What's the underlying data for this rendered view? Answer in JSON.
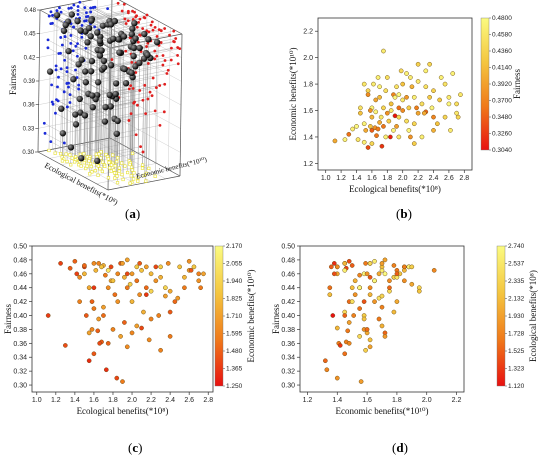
{
  "chart_data": [
    {
      "panel_label": "a",
      "type": "scatter",
      "projection": "3d",
      "zlabel": "Fairness",
      "xlabel": "Ecological benefits(*10⁸)",
      "ylabel": "Economic benefits(*10¹⁰)",
      "z_ticks": [
        "0.48",
        "0.45",
        "0.42",
        "0.39",
        "0.36",
        "0.33",
        "0.30"
      ],
      "colors": {
        "point": "#000000",
        "xz_projection": "#1a2ad8",
        "yz_projection": "#e02020",
        "xy_projection": "#e8e030",
        "drop_line": "#8a8a8a"
      },
      "points": [
        [
          1.5,
          1.36,
          0.47
        ],
        [
          1.55,
          1.32,
          0.335
        ],
        [
          1.58,
          1.48,
          0.42
        ],
        [
          1.6,
          1.45,
          0.345
        ],
        [
          1.65,
          1.59,
          0.475
        ],
        [
          1.6,
          1.35,
          0.44
        ],
        [
          1.64,
          1.47,
          0.378
        ],
        [
          1.68,
          1.46,
          0.362
        ],
        [
          1.66,
          1.41,
          0.36
        ],
        [
          1.7,
          1.51,
          0.4
        ],
        [
          1.84,
          1.4,
          0.31
        ],
        [
          1.9,
          1.56,
          0.305
        ],
        [
          2.3,
          1.59,
          0.35
        ],
        [
          1.73,
          1.33,
          0.322
        ],
        [
          2.4,
          1.45,
          0.405
        ],
        [
          2.1,
          1.4,
          0.382
        ],
        [
          1.3,
          1.42,
          0.357
        ],
        [
          1.45,
          1.58,
          0.42
        ],
        [
          1.55,
          1.72,
          0.375
        ],
        [
          1.75,
          2.05,
          0.465
        ],
        [
          1.92,
          1.78,
          0.455
        ],
        [
          2.0,
          1.6,
          0.375
        ],
        [
          2.2,
          1.82,
          0.46
        ],
        [
          2.7,
          1.58,
          0.46
        ],
        [
          2.5,
          1.85,
          0.47
        ],
        [
          2.6,
          1.7,
          0.465
        ],
        [
          2.35,
          1.95,
          0.44
        ],
        [
          2.75,
          1.72,
          0.46
        ],
        [
          2.05,
          1.88,
          0.47
        ],
        [
          2.25,
          1.65,
          0.45
        ],
        [
          1.78,
          1.75,
          0.45
        ],
        [
          1.82,
          1.52,
          0.43
        ],
        [
          1.95,
          1.55,
          0.44
        ],
        [
          2.0,
          1.68,
          0.46
        ],
        [
          2.15,
          1.5,
          0.44
        ],
        [
          2.1,
          1.85,
          0.465
        ],
        [
          2.4,
          1.75,
          0.435
        ],
        [
          2.55,
          1.55,
          0.44
        ],
        [
          2.45,
          1.5,
          0.42
        ],
        [
          1.6,
          1.62,
          0.475
        ],
        [
          1.4,
          1.48,
          0.478
        ],
        [
          1.85,
          1.6,
          0.46
        ],
        [
          1.95,
          1.72,
          0.48
        ],
        [
          2.2,
          1.95,
          0.435
        ],
        [
          1.7,
          1.78,
          0.472
        ],
        [
          2.3,
          1.78,
          0.455
        ],
        [
          1.55,
          1.75,
          0.44
        ],
        [
          1.88,
          1.45,
          0.475
        ],
        [
          2.05,
          1.52,
          0.45
        ],
        [
          2.15,
          1.7,
          0.47
        ],
        [
          2.6,
          1.65,
          0.478
        ],
        [
          2.65,
          1.88,
          0.47
        ],
        [
          1.75,
          1.62,
          0.44
        ],
        [
          1.98,
          1.9,
          0.445
        ],
        [
          2.38,
          1.62,
          0.475
        ],
        [
          1.62,
          1.8,
          0.465
        ],
        [
          1.8,
          1.85,
          0.45
        ],
        [
          2.25,
          1.4,
          0.47
        ],
        [
          1.45,
          1.62,
          0.455
        ],
        [
          1.5,
          1.5,
          0.472
        ],
        [
          1.72,
          1.55,
          0.458
        ],
        [
          2.08,
          1.62,
          0.43
        ],
        [
          2.48,
          1.68,
          0.425
        ],
        [
          1.85,
          1.65,
          0.42
        ],
        [
          1.95,
          1.4,
          0.46
        ],
        [
          2.28,
          1.58,
          0.4
        ],
        [
          1.6,
          1.55,
          0.41
        ],
        [
          2.0,
          1.8,
          0.42
        ],
        [
          1.7,
          1.7,
          0.412
        ],
        [
          2.12,
          1.78,
          0.405
        ],
        [
          2.35,
          1.7,
          0.428
        ],
        [
          1.52,
          1.45,
          0.4
        ],
        [
          1.92,
          1.48,
          0.39
        ],
        [
          2.2,
          1.58,
          0.395
        ],
        [
          1.8,
          1.58,
          0.38
        ],
        [
          2.05,
          1.7,
          0.385
        ],
        [
          1.65,
          1.68,
          0.395
        ],
        [
          1.88,
          1.72,
          0.37
        ],
        [
          2.18,
          1.62,
          0.365
        ],
        [
          1.75,
          1.48,
          0.36
        ],
        [
          1.95,
          1.62,
          0.355
        ],
        [
          2.4,
          1.55,
          0.37
        ],
        [
          1.58,
          1.6,
          0.38
        ],
        [
          2.15,
          1.35,
          0.43
        ],
        [
          2.3,
          1.9,
          0.47
        ],
        [
          1.42,
          1.38,
          0.46
        ],
        [
          2.7,
          1.65,
          0.45
        ],
        [
          2.55,
          1.8,
          0.455
        ],
        [
          1.25,
          1.38,
          0.475
        ],
        [
          1.35,
          1.46,
          0.468
        ],
        [
          1.12,
          1.37,
          0.4
        ],
        [
          2.62,
          1.45,
          0.465
        ],
        [
          2.72,
          1.55,
          0.44
        ],
        [
          1.9,
          1.7,
          0.475
        ],
        [
          1.68,
          1.85,
          0.47
        ],
        [
          2.08,
          1.45,
          0.475
        ],
        [
          1.78,
          1.4,
          0.47
        ],
        [
          1.5,
          1.8,
          0.46
        ]
      ]
    },
    {
      "panel_label": "b",
      "type": "scatter",
      "xlabel": "Ecological benefits(*10⁸)",
      "ylabel": "Economic benefits(*10¹⁰)",
      "colorbar_label": "Fairness",
      "xlim": [
        0.9,
        2.9
      ],
      "ylim": [
        1.15,
        2.3
      ],
      "x_ticks": [
        "1.0",
        "1.2",
        "1.4",
        "1.6",
        "1.8",
        "2.0",
        "2.2",
        "2.4",
        "2.6",
        "2.8"
      ],
      "y_ticks": [
        "1.2",
        "1.4",
        "1.6",
        "1.8",
        "2.0",
        "2.2"
      ],
      "color_min": 0.304,
      "color_max": 0.48,
      "colorbar_ticks": [
        "0.4800",
        "0.4580",
        "0.4360",
        "0.4140",
        "0.3920",
        "0.3700",
        "0.3480",
        "0.3260",
        "0.3040"
      ],
      "x_field": 0,
      "y_field": 1,
      "c_field": 2
    },
    {
      "panel_label": "c",
      "type": "scatter",
      "xlabel": "Ecological benefits(*10⁸)",
      "ylabel": "Fairness",
      "colorbar_label": "Economic benefits(*10¹⁰)",
      "xlim": [
        0.95,
        2.85
      ],
      "ylim": [
        0.29,
        0.5
      ],
      "x_ticks": [
        "1.0",
        "1.2",
        "1.4",
        "1.6",
        "1.8",
        "2.0",
        "2.2",
        "2.4",
        "2.6",
        "2.8"
      ],
      "y_ticks": [
        "0.30",
        "0.32",
        "0.34",
        "0.36",
        "0.38",
        "0.40",
        "0.42",
        "0.44",
        "0.46",
        "0.48",
        "0.50"
      ],
      "color_min": 1.25,
      "color_max": 2.17,
      "colorbar_ticks": [
        "2.170",
        "2.055",
        "1.940",
        "1.825",
        "1.710",
        "1.595",
        "1.480",
        "1.365",
        "1.250"
      ],
      "x_field": 0,
      "y_field": 2,
      "c_field": 1
    },
    {
      "panel_label": "d",
      "type": "scatter",
      "xlabel": "Economic benefits(*10¹⁰)",
      "ylabel": "Fairness",
      "colorbar_label": "Ecological benefits(*10⁸)",
      "xlim": [
        1.15,
        2.25
      ],
      "ylim": [
        0.29,
        0.5
      ],
      "x_ticks": [
        "1.2",
        "1.4",
        "1.6",
        "1.8",
        "2.0",
        "2.2"
      ],
      "y_ticks": [
        "0.30",
        "0.32",
        "0.34",
        "0.36",
        "0.38",
        "0.40",
        "0.42",
        "0.44",
        "0.46",
        "0.48",
        "0.50"
      ],
      "color_min": 1.12,
      "color_max": 2.74,
      "colorbar_ticks": [
        "2.740",
        "2.537",
        "2.335",
        "2.132",
        "1.930",
        "1.728",
        "1.525",
        "1.323",
        "1.120"
      ],
      "x_field": 1,
      "y_field": 2,
      "c_field": 0
    }
  ],
  "colormap": [
    "#e81010",
    "#f07a1a",
    "#f4c640",
    "#fbfb80"
  ]
}
